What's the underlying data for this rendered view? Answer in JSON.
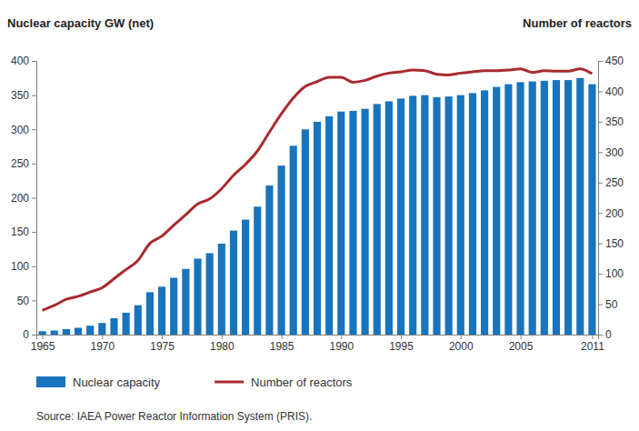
{
  "chart_data": {
    "type": "bar",
    "ylabel": "Nuclear capacity GW (net)",
    "y2label": "Number of reactors",
    "source": "Source: IAEA Power Reactor Information System (PRIS).",
    "x": [
      1965,
      1966,
      1967,
      1968,
      1969,
      1970,
      1971,
      1972,
      1973,
      1974,
      1975,
      1976,
      1977,
      1978,
      1979,
      1980,
      1981,
      1982,
      1983,
      1984,
      1985,
      1986,
      1987,
      1988,
      1989,
      1990,
      1991,
      1992,
      1993,
      1994,
      1995,
      1996,
      1997,
      1998,
      1999,
      2000,
      2001,
      2002,
      2003,
      2004,
      2005,
      2006,
      2007,
      2008,
      2009,
      2010,
      2011
    ],
    "xlim": [
      1964.5,
      2011.5
    ],
    "xticks": [
      1965,
      1970,
      1975,
      1980,
      1985,
      1990,
      1995,
      2000,
      2005,
      2011
    ],
    "ylim": [
      0,
      400
    ],
    "yticks": [
      0,
      50,
      100,
      150,
      200,
      250,
      300,
      350,
      400
    ],
    "y2lim": [
      0,
      450
    ],
    "y2ticks": [
      0,
      50,
      100,
      150,
      200,
      250,
      300,
      350,
      400,
      450
    ],
    "grid": false,
    "legend": "bottom",
    "series": [
      {
        "name": "Nuclear capacity",
        "type": "bar",
        "color": "#1874bd",
        "values": [
          5,
          6,
          8,
          10,
          13,
          17,
          24,
          32,
          43,
          62,
          70,
          83,
          96,
          111,
          119,
          133,
          152,
          168,
          187,
          218,
          247,
          276,
          300,
          311,
          319,
          326,
          327,
          330,
          337,
          341,
          345,
          349,
          350,
          347,
          348,
          350,
          353,
          357,
          362,
          366,
          369,
          370,
          371,
          372,
          372,
          375,
          366
        ]
      },
      {
        "name": "Number of reactors",
        "type": "line",
        "color": "#a82a2e",
        "axis": "y2",
        "values": [
          40,
          48,
          58,
          63,
          70,
          77,
          92,
          107,
          122,
          150,
          162,
          180,
          197,
          215,
          223,
          240,
          262,
          280,
          302,
          333,
          363,
          389,
          408,
          416,
          423,
          423,
          415,
          418,
          425,
          430,
          432,
          435,
          434,
          428,
          427,
          430,
          432,
          434,
          434,
          435,
          437,
          431,
          434,
          433,
          433,
          437,
          429
        ]
      }
    ]
  }
}
